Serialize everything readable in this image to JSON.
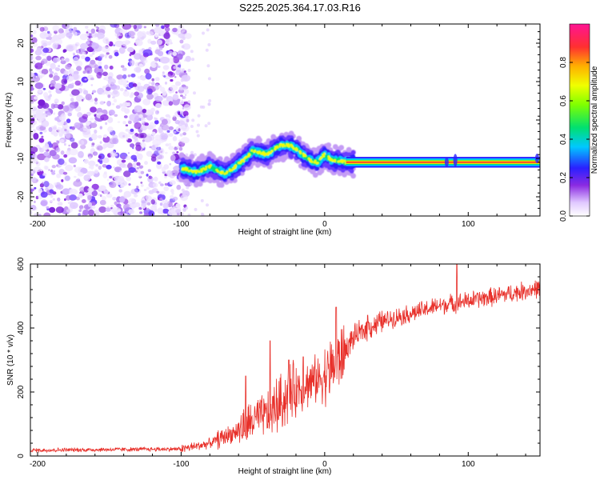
{
  "title": "S225.2025.364.17.03.R16",
  "colors": {
    "snr_line": "#e8302a",
    "ridge_core": "#ff2040",
    "noise": "#8a2be2"
  },
  "chart_data": [
    {
      "type": "heatmap",
      "title": "S225.2025.364.17.03.R16",
      "xlabel": "Height of straight line (km)",
      "ylabel": "Frequency (Hz)",
      "xlim": [
        -205,
        150
      ],
      "ylim": [
        -25,
        25
      ],
      "xticks": [
        -200,
        -100,
        0,
        100
      ],
      "yticks": [
        -20,
        -10,
        0,
        10,
        20
      ],
      "colorbar": {
        "label": "Normalized spectral amplitude",
        "range": [
          0,
          1
        ],
        "ticks": [
          "0.0",
          "0.2",
          "0.4",
          "0.6",
          "0.8"
        ],
        "tick_values": [
          0.0,
          0.2,
          0.4,
          0.6,
          0.8
        ]
      },
      "ridge": {
        "description_points_x": [
          -100,
          -95,
          -90,
          -85,
          -80,
          -75,
          -70,
          -65,
          -60,
          -55,
          -50,
          -45,
          -40,
          -35,
          -30,
          -25,
          -20,
          -15,
          -10,
          -5,
          0,
          5,
          10,
          15,
          20,
          40,
          60,
          80,
          100,
          120,
          150
        ],
        "description_points_y": [
          -12.5,
          -13,
          -13.5,
          -13,
          -12,
          -13,
          -14,
          -13,
          -11.5,
          -10,
          -8,
          -8.5,
          -9,
          -7.5,
          -6.5,
          -6.5,
          -7.5,
          -9,
          -10.5,
          -11,
          -9,
          -10.5,
          -10.5,
          -11,
          -11,
          -11,
          -11,
          -11,
          -11,
          -11,
          -11
        ]
      }
    },
    {
      "type": "line",
      "xlabel": "Height of straight line (km)",
      "ylabel": "SNR (10 * v/v)",
      "xlim": [
        -205,
        150
      ],
      "ylim": [
        0,
        600
      ],
      "xticks": [
        -200,
        -100,
        0,
        100
      ],
      "yticks": [
        0,
        200,
        400,
        600
      ],
      "series": [
        {
          "name": "SNR",
          "trend_x": [
            -205,
            -100,
            -90,
            -80,
            -70,
            -60,
            -50,
            -40,
            -30,
            -20,
            -10,
            0,
            10,
            20,
            30,
            40,
            50,
            60,
            80,
            100,
            120,
            150
          ],
          "trend_y": [
            18,
            22,
            30,
            40,
            60,
            80,
            110,
            130,
            170,
            210,
            230,
            250,
            300,
            370,
            400,
            420,
            435,
            445,
            470,
            485,
            500,
            525
          ],
          "spikes": [
            [
              -55,
              250
            ],
            [
              -38,
              360
            ],
            [
              -25,
              300
            ],
            [
              -15,
              310
            ],
            [
              8,
              465
            ],
            [
              30,
              440
            ],
            [
              92,
              600
            ]
          ]
        }
      ]
    }
  ]
}
